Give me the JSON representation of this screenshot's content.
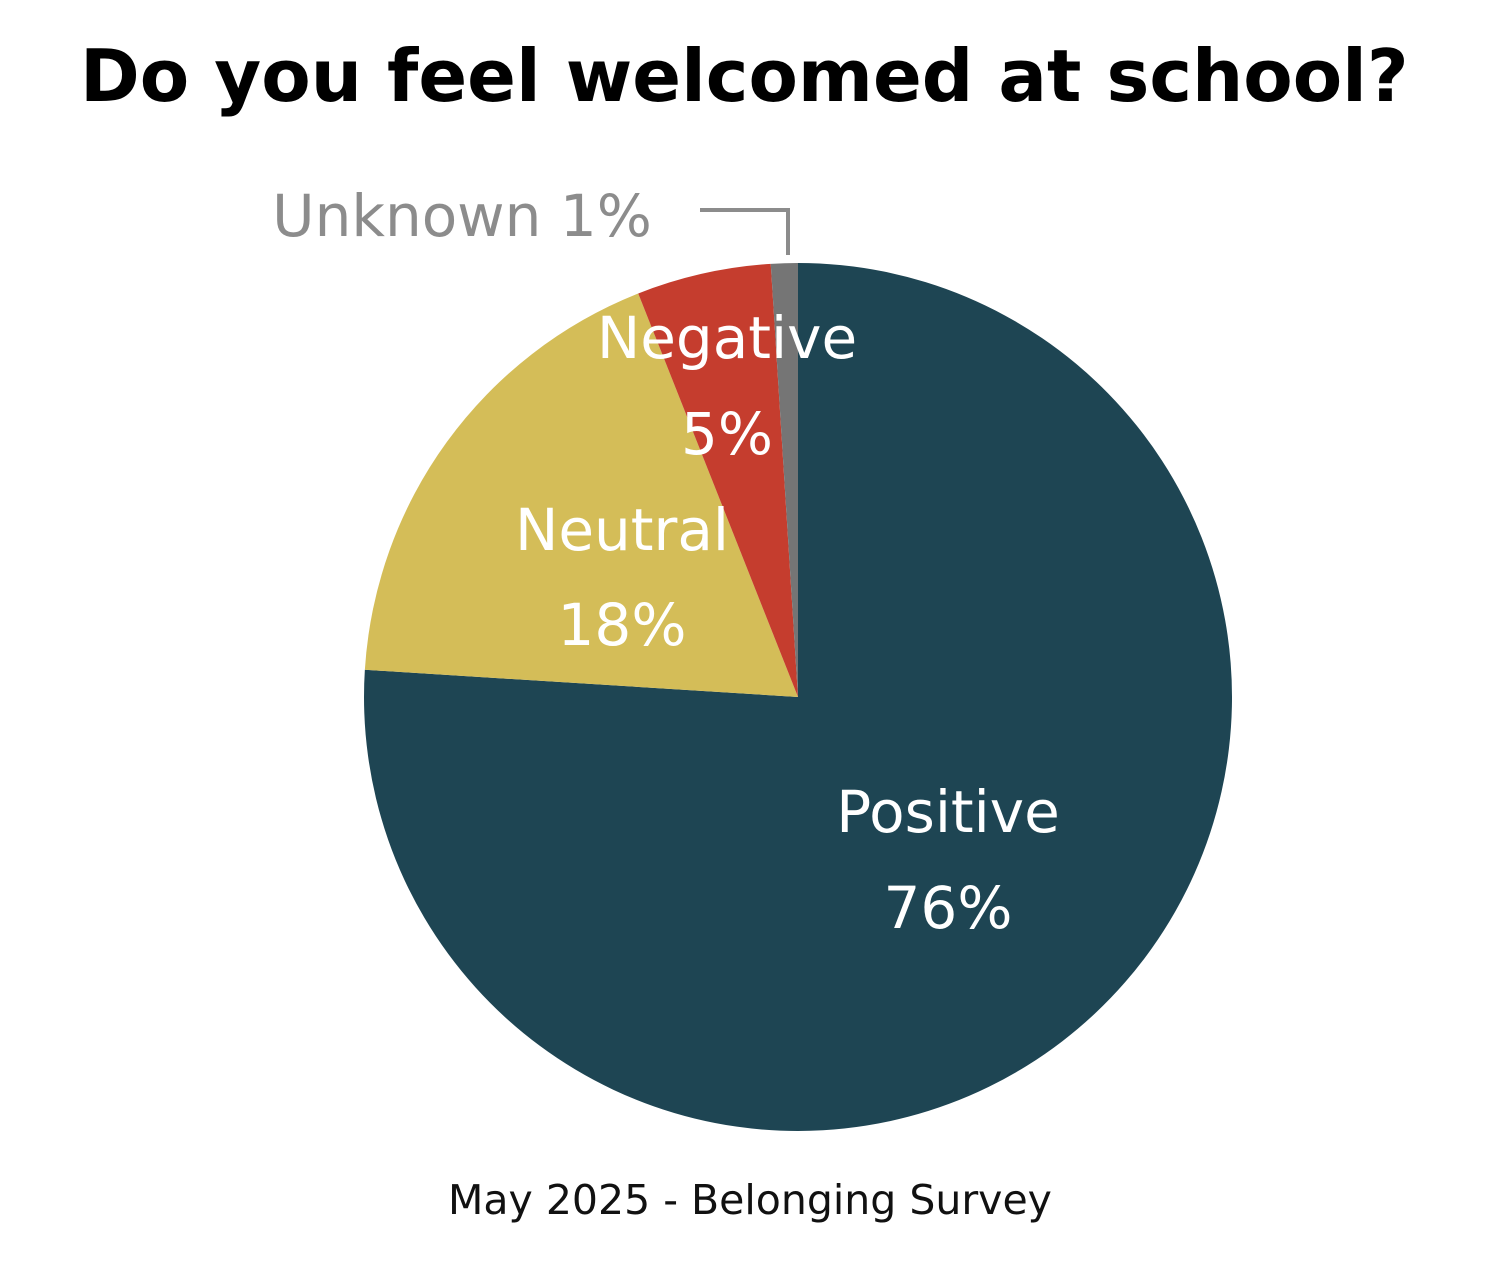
{
  "chart_data": {
    "type": "pie",
    "title": "Do you feel welcomed at school?",
    "subtitle": "May 2025 - Belonging Survey",
    "slices": [
      {
        "name": "Positive",
        "value": 76,
        "display": "76%",
        "color": "#1e4553"
      },
      {
        "name": "Neutral",
        "value": 18,
        "display": "18%",
        "color": "#d4bd58"
      },
      {
        "name": "Negative",
        "value": 5,
        "display": "5%",
        "color": "#c53d2e"
      },
      {
        "name": "Unknown",
        "value": 1,
        "display": "1%",
        "color": "#757575"
      }
    ],
    "legend": "none",
    "start_angle": "12 o'clock",
    "direction": "clockwise",
    "callout_color": "#8c8c8c"
  }
}
